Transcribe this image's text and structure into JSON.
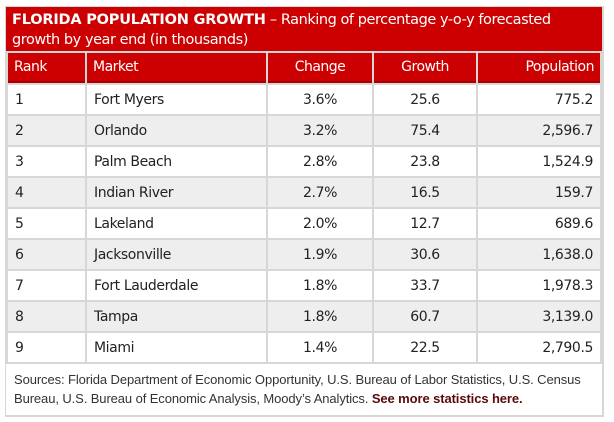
{
  "header": {
    "title_bold": "FLORIDA POPULATION GROWTH",
    "title_rest": " – Ranking of percentage y-o-y forecasted growth by year end (in thousands)"
  },
  "colors": {
    "header_red": "#cc0000",
    "row_alt": "#eeeeee",
    "link": "#5a0a0a"
  },
  "table": {
    "columns": [
      "Rank",
      "Market",
      "Change",
      "Growth",
      "Population"
    ],
    "rows": [
      {
        "rank": "1",
        "market": "Fort Myers",
        "change": "3.6%",
        "growth": "25.6",
        "population": "775.2"
      },
      {
        "rank": "2",
        "market": "Orlando",
        "change": "3.2%",
        "growth": "75.4",
        "population": "2,596.7"
      },
      {
        "rank": "3",
        "market": "Palm Beach",
        "change": "2.8%",
        "growth": "23.8",
        "population": "1,524.9"
      },
      {
        "rank": "4",
        "market": "Indian River",
        "change": "2.7%",
        "growth": "16.5",
        "population": "159.7"
      },
      {
        "rank": "5",
        "market": "Lakeland",
        "change": "2.0%",
        "growth": "12.7",
        "population": "689.6"
      },
      {
        "rank": "6",
        "market": "Jacksonville",
        "change": "1.9%",
        "growth": "30.6",
        "population": "1,638.0"
      },
      {
        "rank": "7",
        "market": "Fort Lauderdale",
        "change": "1.8%",
        "growth": "33.7",
        "population": "1,978.3"
      },
      {
        "rank": "8",
        "market": "Tampa",
        "change": "1.8%",
        "growth": "60.7",
        "population": "3,139.0"
      },
      {
        "rank": "9",
        "market": "Miami",
        "change": "1.4%",
        "growth": "22.5",
        "population": "2,790.5"
      }
    ]
  },
  "footer": {
    "sources": "Sources: Florida Department of Economic Opportunity, U.S. Bureau of Labor Statistics, U.S. Census Bureau, U.S. Bureau of Economic Analysis, Moody’s Analytics. ",
    "link_text": "See more statistics here."
  }
}
